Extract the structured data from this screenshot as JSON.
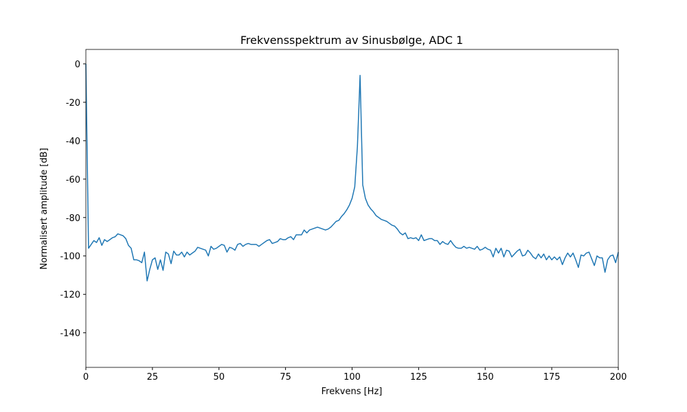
{
  "chart_data": {
    "type": "line",
    "title": "Frekvensspektrum av Sinusbølge, ADC 1",
    "xlabel": "Frekvens [Hz]",
    "ylabel": "Normalisert amplitude [dB]",
    "xlim": [
      0,
      200
    ],
    "ylim": [
      -158,
      7.5
    ],
    "xticks": [
      0,
      25,
      50,
      75,
      100,
      125,
      150,
      175,
      200
    ],
    "yticks": [
      0,
      -20,
      -40,
      -60,
      -80,
      -100,
      -120,
      -140
    ],
    "x": [
      0,
      1,
      2,
      3,
      4,
      5,
      6,
      7,
      8,
      9,
      10,
      11,
      12,
      13,
      14,
      15,
      16,
      17,
      18,
      19,
      20,
      21,
      22,
      23,
      24,
      25,
      26,
      27,
      28,
      29,
      30,
      31,
      32,
      33,
      34,
      35,
      36,
      37,
      38,
      39,
      40,
      41,
      42,
      43,
      44,
      45,
      46,
      47,
      48,
      49,
      50,
      51,
      52,
      53,
      54,
      55,
      56,
      57,
      58,
      59,
      60,
      61,
      62,
      63,
      64,
      65,
      66,
      67,
      68,
      69,
      70,
      71,
      72,
      73,
      74,
      75,
      76,
      77,
      78,
      79,
      80,
      81,
      82,
      83,
      84,
      85,
      86,
      87,
      88,
      89,
      90,
      91,
      92,
      93,
      94,
      95,
      96,
      97,
      98,
      99,
      100,
      101,
      102,
      103,
      104,
      105,
      106,
      107,
      108,
      109,
      110,
      111,
      112,
      113,
      114,
      115,
      116,
      117,
      118,
      119,
      120,
      121,
      122,
      123,
      124,
      125,
      126,
      127,
      128,
      129,
      130,
      131,
      132,
      133,
      134,
      135,
      136,
      137,
      138,
      139,
      140,
      141,
      142,
      143,
      144,
      145,
      146,
      147,
      148,
      149,
      150,
      151,
      152,
      153,
      154,
      155,
      156,
      157,
      158,
      159,
      160,
      161,
      162,
      163,
      164,
      165,
      166,
      167,
      168,
      169,
      170,
      171,
      172,
      173,
      174,
      175,
      176,
      177,
      178,
      179,
      180,
      181,
      182,
      183,
      184,
      185,
      186,
      187,
      188,
      189,
      190,
      191,
      192,
      193,
      194,
      195,
      196,
      197,
      198,
      199,
      200
    ],
    "series": [
      {
        "color": "#1f77b4",
        "values": [
          0,
          -96,
          -94,
          -92,
          -93,
          -90.5,
          -94.5,
          -91.5,
          -92.5,
          -91.5,
          -90.5,
          -90,
          -88.5,
          -89,
          -89.5,
          -91,
          -94.5,
          -96,
          -102,
          -102,
          -102.5,
          -103.5,
          -98,
          -113,
          -107,
          -102,
          -101,
          -107,
          -102,
          -107.5,
          -98,
          -99,
          -104,
          -97.5,
          -99.5,
          -99.5,
          -98,
          -100.5,
          -98,
          -99.5,
          -98.5,
          -97.5,
          -95.5,
          -96,
          -96.5,
          -97,
          -100,
          -95,
          -96.5,
          -96,
          -95,
          -94,
          -94.5,
          -98,
          -95.5,
          -96,
          -97,
          -94,
          -93.5,
          -95,
          -94,
          -93.5,
          -94,
          -94,
          -94,
          -95,
          -94,
          -93,
          -92,
          -91.5,
          -93.5,
          -93,
          -92.5,
          -91,
          -91.5,
          -91.5,
          -90.5,
          -90,
          -91.5,
          -89,
          -89,
          -89,
          -86.5,
          -88,
          -86.5,
          -86,
          -85.5,
          -85,
          -85.5,
          -86,
          -86.5,
          -86,
          -85,
          -83.5,
          -82,
          -81.5,
          -79.5,
          -78,
          -76,
          -73.5,
          -70,
          -64,
          -43,
          -6,
          -63,
          -70,
          -73.5,
          -75.5,
          -77,
          -79,
          -80,
          -81,
          -81.5,
          -82,
          -83,
          -84,
          -84.5,
          -86,
          -88,
          -89,
          -88,
          -91,
          -90.5,
          -91,
          -90.5,
          -92,
          -89,
          -92,
          -91.5,
          -91,
          -91,
          -92,
          -92,
          -94,
          -92.5,
          -93.5,
          -94,
          -92,
          -94,
          -95.5,
          -96,
          -96,
          -95,
          -96,
          -95.5,
          -96,
          -96.5,
          -95,
          -97,
          -96.5,
          -95.5,
          -96.5,
          -97,
          -100.5,
          -96,
          -98.5,
          -96,
          -100.5,
          -97,
          -97.5,
          -100.5,
          -99,
          -97.5,
          -96.5,
          -100,
          -99.5,
          -97,
          -98.5,
          -100.5,
          -101.5,
          -99,
          -101,
          -99,
          -102,
          -100,
          -102,
          -100.5,
          -102,
          -100.5,
          -104.5,
          -101,
          -98.5,
          -100.5,
          -98.5,
          -102,
          -106,
          -99.5,
          -100,
          -98.5,
          -98,
          -101.5,
          -105,
          -100,
          -101,
          -101,
          -108.5,
          -102,
          -100,
          -99.5,
          -103.5,
          -98
        ]
      }
    ]
  }
}
